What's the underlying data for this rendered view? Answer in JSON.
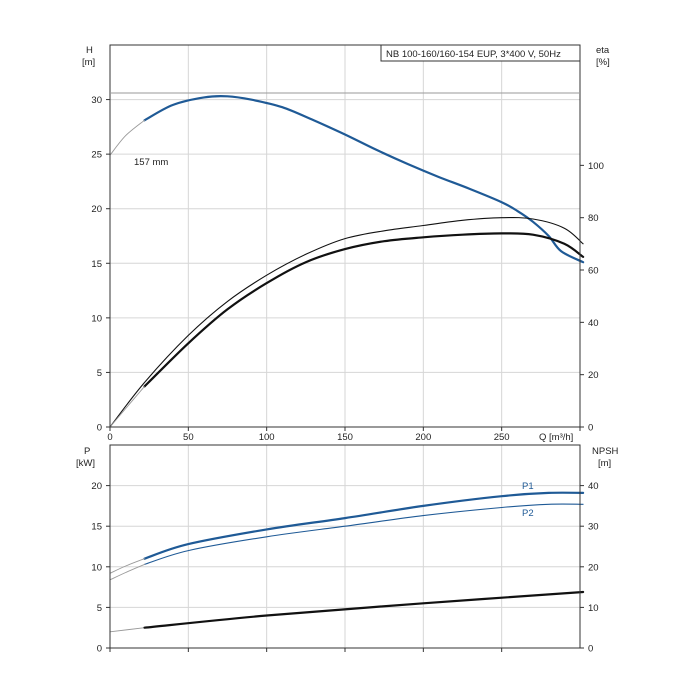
{
  "colors": {
    "blue": "#1f5a96",
    "black": "#111111",
    "grid": "#d6d6d6",
    "axis": "#333333",
    "faint": "#9a9a9a"
  },
  "top": {
    "title": "NB 100-160/160-154 EUP, 3*400 V, 50Hz",
    "y_left_label": [
      "H",
      "[m]"
    ],
    "y_right_label": [
      "eta",
      "[%]"
    ],
    "x_label": "Q [m³/h]",
    "impeller_label": "157 mm",
    "x_ticks": [
      "0",
      "50",
      "100",
      "150",
      "200",
      "250"
    ],
    "y_left_ticks": [
      "0",
      "5",
      "10",
      "15",
      "20",
      "25",
      "30"
    ],
    "y_right_ticks": [
      "0",
      "20",
      "40",
      "60",
      "80",
      "100"
    ]
  },
  "bottom": {
    "y_left_label": [
      "P",
      "[kW]"
    ],
    "y_right_label": [
      "NPSH",
      "[m]"
    ],
    "y_left_ticks": [
      "0",
      "5",
      "10",
      "15",
      "20"
    ],
    "y_right_ticks": [
      "0",
      "10",
      "20",
      "30",
      "40"
    ],
    "legend_p1": "P1",
    "legend_p2": "P2"
  },
  "chart_data": [
    {
      "type": "line",
      "title": "NB 100-160/160-154 EUP, 3*400 V, 50Hz",
      "xlabel": "Q [m³/h]",
      "ylabel": "H [m]",
      "y2label": "eta [%]",
      "xlim": [
        0,
        300
      ],
      "ylim": [
        0,
        35
      ],
      "y2lim": [
        0,
        146
      ],
      "grid": true,
      "series": [
        {
          "name": "157 mm",
          "axis": "left",
          "x": [
            22,
            40,
            60,
            75,
            90,
            110,
            130,
            150,
            170,
            190,
            210,
            230,
            250,
            260,
            270,
            280,
            288,
            302
          ],
          "y": [
            28.1,
            29.5,
            30.2,
            30.3,
            30.0,
            29.3,
            28.1,
            26.8,
            25.4,
            24.1,
            22.9,
            21.8,
            20.6,
            19.8,
            18.8,
            17.5,
            16.1,
            15.1
          ]
        },
        {
          "axis": "left",
          "x": [
            0,
            10,
            22
          ],
          "y": [
            24.9,
            26.7,
            28.1
          ]
        },
        {
          "name": "eta (upper)",
          "axis": "right",
          "x": [
            0,
            22,
            50,
            75,
            100,
            125,
            150,
            175,
            200,
            225,
            250,
            270,
            290,
            302
          ],
          "y": [
            0,
            17,
            35,
            48,
            58,
            66,
            72,
            75,
            77,
            79,
            80,
            79.5,
            76,
            70
          ]
        },
        {
          "name": "eta (lower)",
          "axis": "right",
          "x": [
            22,
            50,
            75,
            100,
            125,
            150,
            175,
            200,
            225,
            250,
            270,
            290,
            302
          ],
          "y": [
            15.5,
            32,
            45,
            55,
            63,
            68,
            71,
            72.5,
            73.5,
            74,
            73.5,
            70,
            65
          ]
        }
      ]
    },
    {
      "type": "line",
      "ylabel": "P [kW]",
      "y2label": "NPSH [m]",
      "xlim": [
        0,
        300
      ],
      "ylim": [
        0,
        25
      ],
      "y2lim": [
        0,
        50
      ],
      "grid": true,
      "series": [
        {
          "name": "P1",
          "axis": "left",
          "x": [
            22,
            50,
            100,
            150,
            200,
            250,
            280,
            302
          ],
          "y": [
            11.0,
            12.8,
            14.6,
            16.0,
            17.5,
            18.7,
            19.1,
            19.1
          ]
        },
        {
          "axis": "left",
          "x": [
            0,
            10,
            22
          ],
          "y": [
            9.2,
            10.1,
            11.0
          ]
        },
        {
          "name": "P2",
          "axis": "left",
          "x": [
            22,
            50,
            100,
            150,
            200,
            250,
            280,
            302
          ],
          "y": [
            10.3,
            12.0,
            13.7,
            15.0,
            16.3,
            17.3,
            17.7,
            17.7
          ]
        },
        {
          "axis": "left",
          "x": [
            0,
            10,
            22
          ],
          "y": [
            8.4,
            9.3,
            10.3
          ]
        },
        {
          "name": "NPSH",
          "axis": "right",
          "x": [
            0,
            22,
            100,
            200,
            302
          ],
          "y": [
            4,
            5,
            8,
            11,
            13.8
          ]
        }
      ]
    }
  ]
}
